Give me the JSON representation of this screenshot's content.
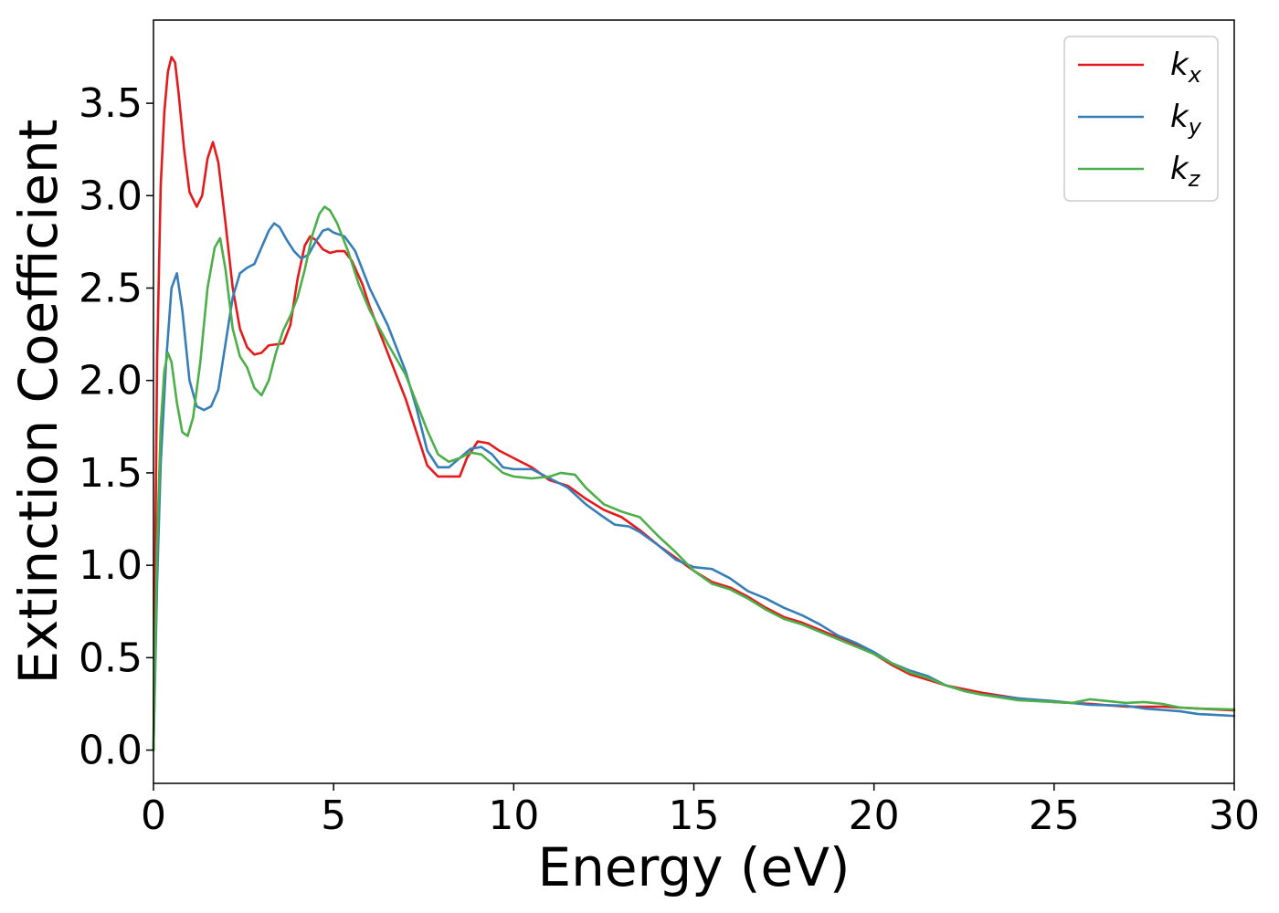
{
  "chart_data": {
    "type": "line",
    "title": "",
    "xlabel": "Energy (eV)",
    "ylabel": "Extinction Coefficient",
    "xlim": [
      0,
      30
    ],
    "ylim": [
      -0.18,
      3.95
    ],
    "xticks": [
      0,
      5,
      10,
      15,
      20,
      25,
      30
    ],
    "xtick_labels": [
      "0",
      "5",
      "10",
      "15",
      "20",
      "25",
      "30"
    ],
    "yticks": [
      0.0,
      0.5,
      1.0,
      1.5,
      2.0,
      2.5,
      3.0,
      3.5
    ],
    "ytick_labels": [
      "0.0",
      "0.5",
      "1.0",
      "1.5",
      "2.0",
      "2.5",
      "3.0",
      "3.5"
    ],
    "grid": false,
    "legend_position": "top-right",
    "series": [
      {
        "name": "k",
        "subscript": "x",
        "color": "#e41a1c",
        "points": [
          [
            0,
            0.0
          ],
          [
            0.1,
            2.1
          ],
          [
            0.2,
            3.05
          ],
          [
            0.3,
            3.45
          ],
          [
            0.4,
            3.67
          ],
          [
            0.5,
            3.75
          ],
          [
            0.6,
            3.72
          ],
          [
            0.7,
            3.55
          ],
          [
            0.85,
            3.25
          ],
          [
            1.0,
            3.02
          ],
          [
            1.2,
            2.94
          ],
          [
            1.35,
            3.0
          ],
          [
            1.5,
            3.2
          ],
          [
            1.65,
            3.29
          ],
          [
            1.8,
            3.18
          ],
          [
            2.0,
            2.85
          ],
          [
            2.2,
            2.5
          ],
          [
            2.4,
            2.28
          ],
          [
            2.6,
            2.18
          ],
          [
            2.8,
            2.14
          ],
          [
            3.0,
            2.15
          ],
          [
            3.2,
            2.19
          ],
          [
            3.6,
            2.2
          ],
          [
            3.8,
            2.3
          ],
          [
            4.0,
            2.55
          ],
          [
            4.2,
            2.73
          ],
          [
            4.35,
            2.78
          ],
          [
            4.5,
            2.76
          ],
          [
            4.7,
            2.71
          ],
          [
            4.9,
            2.69
          ],
          [
            5.1,
            2.7
          ],
          [
            5.3,
            2.7
          ],
          [
            5.5,
            2.65
          ],
          [
            5.8,
            2.52
          ],
          [
            6.0,
            2.4
          ],
          [
            6.5,
            2.15
          ],
          [
            7.0,
            1.9
          ],
          [
            7.3,
            1.72
          ],
          [
            7.6,
            1.54
          ],
          [
            7.9,
            1.48
          ],
          [
            8.2,
            1.48
          ],
          [
            8.5,
            1.48
          ],
          [
            8.7,
            1.58
          ],
          [
            9.0,
            1.67
          ],
          [
            9.3,
            1.66
          ],
          [
            9.6,
            1.62
          ],
          [
            10.0,
            1.58
          ],
          [
            10.5,
            1.53
          ],
          [
            11.0,
            1.46
          ],
          [
            11.5,
            1.43
          ],
          [
            12.0,
            1.36
          ],
          [
            12.5,
            1.3
          ],
          [
            13.0,
            1.26
          ],
          [
            13.5,
            1.19
          ],
          [
            14.0,
            1.11
          ],
          [
            14.5,
            1.04
          ],
          [
            15.0,
            0.97
          ],
          [
            15.5,
            0.91
          ],
          [
            16.0,
            0.88
          ],
          [
            16.5,
            0.83
          ],
          [
            17.0,
            0.77
          ],
          [
            17.5,
            0.72
          ],
          [
            18.0,
            0.69
          ],
          [
            18.5,
            0.65
          ],
          [
            19.0,
            0.61
          ],
          [
            19.5,
            0.57
          ],
          [
            20.0,
            0.52
          ],
          [
            20.5,
            0.46
          ],
          [
            21.0,
            0.41
          ],
          [
            21.5,
            0.38
          ],
          [
            22.0,
            0.35
          ],
          [
            22.5,
            0.33
          ],
          [
            23.0,
            0.31
          ],
          [
            24.0,
            0.28
          ],
          [
            25.0,
            0.26
          ],
          [
            26.0,
            0.25
          ],
          [
            27.0,
            0.235
          ],
          [
            28.0,
            0.235
          ],
          [
            29.0,
            0.225
          ],
          [
            30.0,
            0.215
          ]
        ]
      },
      {
        "name": "k",
        "subscript": "y",
        "color": "#377eb8",
        "points": [
          [
            0,
            0.0
          ],
          [
            0.1,
            0.9
          ],
          [
            0.2,
            1.55
          ],
          [
            0.35,
            2.1
          ],
          [
            0.5,
            2.5
          ],
          [
            0.65,
            2.58
          ],
          [
            0.8,
            2.38
          ],
          [
            1.0,
            2.0
          ],
          [
            1.2,
            1.86
          ],
          [
            1.4,
            1.84
          ],
          [
            1.6,
            1.86
          ],
          [
            1.8,
            1.95
          ],
          [
            2.0,
            2.2
          ],
          [
            2.2,
            2.45
          ],
          [
            2.4,
            2.58
          ],
          [
            2.6,
            2.61
          ],
          [
            2.8,
            2.63
          ],
          [
            3.0,
            2.72
          ],
          [
            3.2,
            2.81
          ],
          [
            3.35,
            2.85
          ],
          [
            3.5,
            2.83
          ],
          [
            3.7,
            2.76
          ],
          [
            3.9,
            2.7
          ],
          [
            4.1,
            2.66
          ],
          [
            4.3,
            2.68
          ],
          [
            4.5,
            2.75
          ],
          [
            4.7,
            2.81
          ],
          [
            4.85,
            2.82
          ],
          [
            5.0,
            2.8
          ],
          [
            5.3,
            2.78
          ],
          [
            5.6,
            2.7
          ],
          [
            6.0,
            2.5
          ],
          [
            6.5,
            2.3
          ],
          [
            7.0,
            2.05
          ],
          [
            7.3,
            1.85
          ],
          [
            7.6,
            1.62
          ],
          [
            7.9,
            1.53
          ],
          [
            8.2,
            1.53
          ],
          [
            8.5,
            1.58
          ],
          [
            8.8,
            1.63
          ],
          [
            9.1,
            1.64
          ],
          [
            9.4,
            1.6
          ],
          [
            9.7,
            1.53
          ],
          [
            10.0,
            1.52
          ],
          [
            10.5,
            1.52
          ],
          [
            11.0,
            1.47
          ],
          [
            11.5,
            1.42
          ],
          [
            12.0,
            1.33
          ],
          [
            12.5,
            1.26
          ],
          [
            12.8,
            1.22
          ],
          [
            13.2,
            1.21
          ],
          [
            13.5,
            1.18
          ],
          [
            14.0,
            1.11
          ],
          [
            14.5,
            1.03
          ],
          [
            15.0,
            0.99
          ],
          [
            15.5,
            0.98
          ],
          [
            16.0,
            0.93
          ],
          [
            16.5,
            0.86
          ],
          [
            17.0,
            0.82
          ],
          [
            17.5,
            0.77
          ],
          [
            18.0,
            0.73
          ],
          [
            18.5,
            0.68
          ],
          [
            19.0,
            0.62
          ],
          [
            19.5,
            0.58
          ],
          [
            20.0,
            0.53
          ],
          [
            20.5,
            0.47
          ],
          [
            21.0,
            0.43
          ],
          [
            21.5,
            0.4
          ],
          [
            22.0,
            0.35
          ],
          [
            22.5,
            0.32
          ],
          [
            23.0,
            0.3
          ],
          [
            24.0,
            0.28
          ],
          [
            25.0,
            0.265
          ],
          [
            26.0,
            0.245
          ],
          [
            27.0,
            0.24
          ],
          [
            27.5,
            0.225
          ],
          [
            28.5,
            0.21
          ],
          [
            29.0,
            0.195
          ],
          [
            29.5,
            0.19
          ],
          [
            30.0,
            0.185
          ]
        ]
      },
      {
        "name": "k",
        "subscript": "z",
        "color": "#4daf4a",
        "points": [
          [
            0,
            0.0
          ],
          [
            0.1,
            1.1
          ],
          [
            0.2,
            1.75
          ],
          [
            0.3,
            2.05
          ],
          [
            0.4,
            2.15
          ],
          [
            0.5,
            2.1
          ],
          [
            0.65,
            1.88
          ],
          [
            0.8,
            1.72
          ],
          [
            0.95,
            1.7
          ],
          [
            1.1,
            1.8
          ],
          [
            1.3,
            2.1
          ],
          [
            1.5,
            2.5
          ],
          [
            1.7,
            2.72
          ],
          [
            1.85,
            2.77
          ],
          [
            2.0,
            2.6
          ],
          [
            2.2,
            2.28
          ],
          [
            2.4,
            2.13
          ],
          [
            2.6,
            2.07
          ],
          [
            2.8,
            1.96
          ],
          [
            3.0,
            1.92
          ],
          [
            3.2,
            2.0
          ],
          [
            3.4,
            2.15
          ],
          [
            3.6,
            2.27
          ],
          [
            3.8,
            2.35
          ],
          [
            4.0,
            2.45
          ],
          [
            4.2,
            2.6
          ],
          [
            4.4,
            2.78
          ],
          [
            4.6,
            2.9
          ],
          [
            4.75,
            2.94
          ],
          [
            4.9,
            2.92
          ],
          [
            5.1,
            2.85
          ],
          [
            5.4,
            2.7
          ],
          [
            5.7,
            2.52
          ],
          [
            6.0,
            2.38
          ],
          [
            6.5,
            2.2
          ],
          [
            7.0,
            2.03
          ],
          [
            7.3,
            1.88
          ],
          [
            7.6,
            1.73
          ],
          [
            7.9,
            1.6
          ],
          [
            8.2,
            1.56
          ],
          [
            8.5,
            1.58
          ],
          [
            8.8,
            1.61
          ],
          [
            9.1,
            1.6
          ],
          [
            9.4,
            1.55
          ],
          [
            9.7,
            1.5
          ],
          [
            10.0,
            1.48
          ],
          [
            10.5,
            1.47
          ],
          [
            11.0,
            1.48
          ],
          [
            11.3,
            1.5
          ],
          [
            11.7,
            1.49
          ],
          [
            12.0,
            1.42
          ],
          [
            12.5,
            1.33
          ],
          [
            13.0,
            1.29
          ],
          [
            13.5,
            1.26
          ],
          [
            14.0,
            1.16
          ],
          [
            14.5,
            1.07
          ],
          [
            15.0,
            0.97
          ],
          [
            15.5,
            0.9
          ],
          [
            16.0,
            0.87
          ],
          [
            16.5,
            0.82
          ],
          [
            17.0,
            0.76
          ],
          [
            17.5,
            0.71
          ],
          [
            18.0,
            0.68
          ],
          [
            18.5,
            0.64
          ],
          [
            19.0,
            0.6
          ],
          [
            19.5,
            0.56
          ],
          [
            20.0,
            0.52
          ],
          [
            20.5,
            0.47
          ],
          [
            21.0,
            0.42
          ],
          [
            21.5,
            0.39
          ],
          [
            22.0,
            0.35
          ],
          [
            22.5,
            0.32
          ],
          [
            23.0,
            0.3
          ],
          [
            24.0,
            0.27
          ],
          [
            25.0,
            0.26
          ],
          [
            25.5,
            0.255
          ],
          [
            26.0,
            0.275
          ],
          [
            26.5,
            0.265
          ],
          [
            27.0,
            0.255
          ],
          [
            27.5,
            0.26
          ],
          [
            28.0,
            0.25
          ],
          [
            28.5,
            0.23
          ],
          [
            29.0,
            0.225
          ],
          [
            30.0,
            0.22
          ]
        ]
      }
    ]
  }
}
